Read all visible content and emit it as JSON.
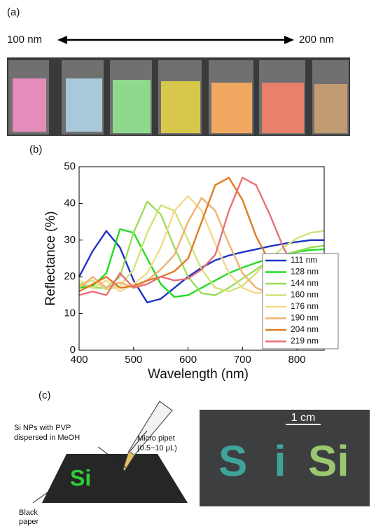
{
  "panel_a": {
    "label": "(a)",
    "left": "100 nm",
    "right": "200 nm"
  },
  "chart_data": {
    "type": "line",
    "label": "(b)",
    "x_label": "Wavelength (nm)",
    "y_label": "Reflectance (%)",
    "x": [
      400,
      425,
      450,
      475,
      500,
      525,
      550,
      575,
      600,
      625,
      650,
      675,
      700,
      725,
      750,
      775,
      800,
      825,
      850
    ],
    "xlim": [
      400,
      850
    ],
    "xticks": [
      400,
      500,
      600,
      700,
      800
    ],
    "ylim": [
      0,
      50
    ],
    "yticks": [
      0,
      10,
      20,
      30,
      40,
      50
    ],
    "legend": "lower-right",
    "series": [
      {
        "name": "111 nm",
        "color": "#1c35c4",
        "values": [
          20,
          27,
          32.5,
          28,
          19,
          13,
          14,
          17,
          20,
          22.5,
          24.5,
          25.8,
          26.7,
          27.5,
          28.3,
          29,
          29.5,
          30,
          30
        ]
      },
      {
        "name": "128 nm",
        "color": "#22dd22",
        "values": [
          17,
          17.5,
          21,
          33,
          32,
          25,
          18,
          14.5,
          15,
          17,
          19,
          21,
          22.5,
          23.8,
          25,
          26,
          26.8,
          27.3,
          27.5
        ]
      },
      {
        "name": "144 nm",
        "color": "#9ddc5a",
        "values": [
          18,
          17,
          17,
          20,
          32,
          40.5,
          37,
          28,
          20,
          15.5,
          15,
          17,
          19.5,
          22,
          24.5,
          26,
          27,
          28,
          28.5
        ]
      },
      {
        "name": "160 nm",
        "color": "#d2e27a",
        "values": [
          18,
          19,
          16.5,
          17.5,
          22,
          32,
          39.5,
          38,
          30,
          22,
          17,
          16,
          17.5,
          21,
          25,
          28,
          30.5,
          32,
          32.5
        ]
      },
      {
        "name": "176 nm",
        "color": "#f2d98a",
        "values": [
          19,
          17,
          19,
          16,
          18,
          21,
          28,
          38,
          42,
          38,
          29,
          21,
          17,
          15.5,
          16,
          18,
          21,
          23.5,
          25
        ]
      },
      {
        "name": "190 nm",
        "color": "#f3b070",
        "values": [
          17,
          20,
          17,
          18.5,
          17,
          19,
          22,
          26,
          35,
          41.5,
          38,
          29,
          21,
          17,
          15.5,
          16,
          18,
          21,
          23
        ]
      },
      {
        "name": "204 nm",
        "color": "#e07b22",
        "values": [
          16,
          18,
          20,
          17,
          17.5,
          19,
          20,
          21.5,
          25,
          35,
          45,
          47,
          41,
          31,
          24,
          19,
          17,
          17.5,
          19
        ]
      },
      {
        "name": "219 nm",
        "color": "#e8707a",
        "values": [
          15,
          16,
          15,
          21,
          17,
          18,
          20,
          19,
          19.5,
          22,
          26,
          38,
          47,
          45,
          37,
          28,
          21,
          18,
          18
        ]
      }
    ]
  },
  "panel_c": {
    "label": "(c)",
    "note_1": "Si NPs with PVP",
    "note_2": "dispersed in MeOH",
    "pipet_1": "Micro pipet",
    "pipet_2": "(0.5~10 μL)",
    "paper_1": "Black",
    "paper_2": "paper",
    "drawn_text": "Si",
    "scale": "1 cm",
    "photo_text_1": "Si",
    "photo_text_2": "Si"
  }
}
